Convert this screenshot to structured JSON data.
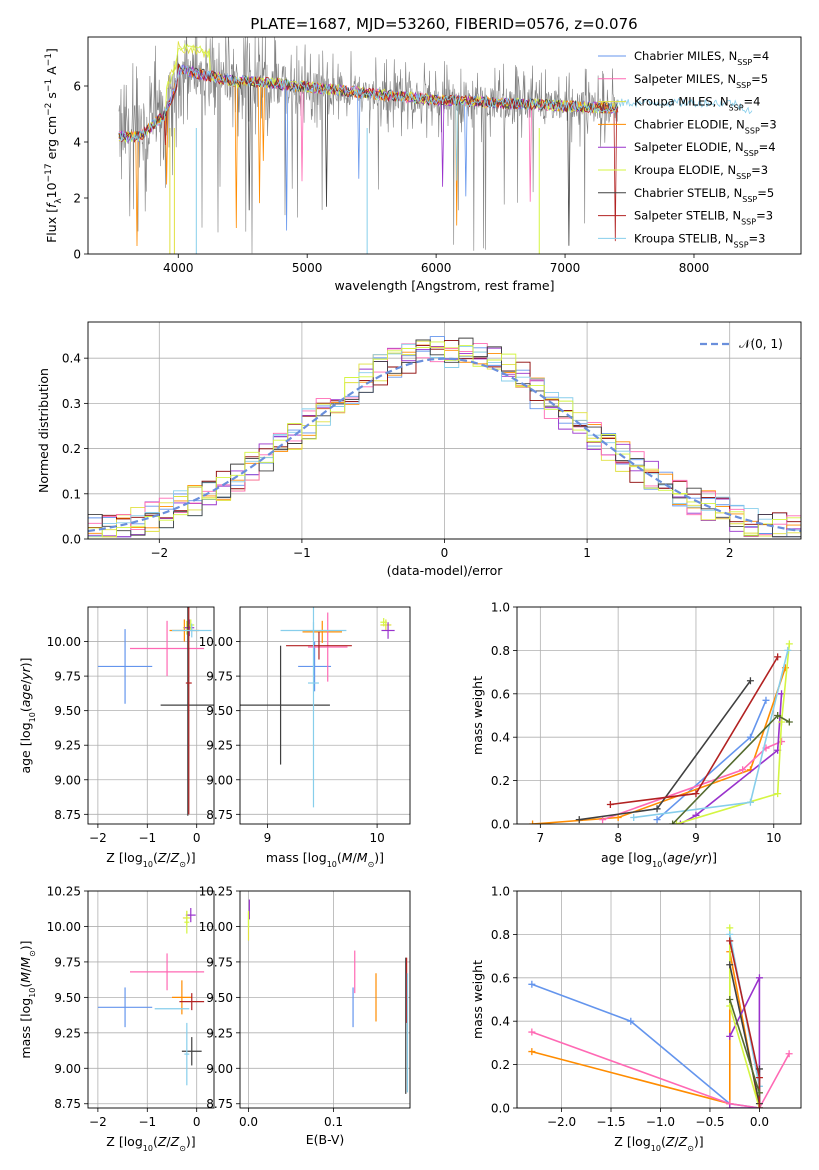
{
  "title": "PLATE=1687, MJD=53260, FIBERID=0576, z=0.076",
  "chart_data": [
    {
      "id": "spectrum",
      "type": "line",
      "title": "PLATE=1687, MJD=53260, FIBERID=0576, z=0.076",
      "xlabel": "wavelength [Angstrom, rest frame]",
      "ylabel_html": "Flux [<tspan font-style='italic'>f</tspan><tspan baseline-shift='sub' font-size='9'>λ</tspan>10<tspan baseline-shift='super' font-size='9'>−17</tspan> erg cm<tspan baseline-shift='super' font-size='9'>−2</tspan> s<tspan baseline-shift='super' font-size='9'>−1</tspan> A<tspan baseline-shift='super' font-size='9'>−1</tspan>]",
      "xlim": [
        3300,
        8830
      ],
      "ylim": [
        0,
        7.75
      ],
      "xticks": [
        4000,
        5000,
        6000,
        7000,
        8000
      ],
      "yticks": [
        0,
        2,
        4,
        6
      ],
      "grid": false,
      "legend_placement": "right",
      "data_series": {
        "name": "data",
        "color": "#808080",
        "x_range": [
          3540,
          7410
        ]
      },
      "model_series": [
        {
          "name_html": "Chabrier MILES, N<tspan baseline-shift='sub' font-size='8'>SSP</tspan>=4",
          "color": "#6495ed"
        },
        {
          "name_html": "Salpeter MILES, N<tspan baseline-shift='sub' font-size='8'>SSP</tspan>=5",
          "color": "#ff69b4"
        },
        {
          "name_html": "Kroupa MILES, N<tspan baseline-shift='sub' font-size='8'>SSP</tspan>=4",
          "color": "#e0e040"
        },
        {
          "name_html": "Chabrier ELODIE, N<tspan baseline-shift='sub' font-size='8'>SSP</tspan>=3",
          "color": "#ff8c00"
        },
        {
          "name_html": "Salpeter ELODIE, N<tspan baseline-shift='sub' font-size='8'>SSP</tspan>=4",
          "color": "#9932cc"
        },
        {
          "name_html": "Kroupa ELODIE, N<tspan baseline-shift='sub' font-size='8'>SSP</tspan>=3",
          "color": "#d4f542"
        },
        {
          "name_html": "Chabrier STELIB, N<tspan baseline-shift='sub' font-size='8'>SSP</tspan>=5",
          "color": "#404040"
        },
        {
          "name_html": "Salpeter STELIB, N<tspan baseline-shift='sub' font-size='8'>SSP</tspan>=3",
          "color": "#b22222"
        },
        {
          "name_html": "Kroupa STELIB, N<tspan baseline-shift='sub' font-size='8'>SSP</tspan>=3",
          "color": "#87ceeb"
        }
      ]
    },
    {
      "id": "residuals",
      "type": "histogram",
      "xlabel": "(data-model)/error",
      "ylabel": "Normed distribution",
      "xlim": [
        -2.5,
        2.5
      ],
      "ylim": [
        0,
        0.48
      ],
      "xticks": [
        -2,
        -1,
        0,
        1,
        2
      ],
      "yticks": [
        0.0,
        0.1,
        0.2,
        0.3,
        0.4
      ],
      "grid": true,
      "legend_placement": "top-right",
      "legend": [
        {
          "label": "𝒩(0, 1)",
          "color": "#6a8fdc",
          "style": "dashed"
        }
      ],
      "bin_width": 0.1,
      "series_colors": [
        "#6495ed",
        "#ff8c00",
        "#9932cc",
        "#e0e040",
        "#8b0000",
        "#ff69b4",
        "#87ceeb",
        "#404040",
        "#d4f542"
      ]
    },
    {
      "id": "age-vs-z",
      "type": "errorbar",
      "xlabel_html": "Z [log<tspan baseline-shift='sub' font-size='8'>10</tspan>(<tspan font-style='italic'>Z</tspan>/<tspan font-style='italic'>Z</tspan><tspan baseline-shift='sub' font-size='8'>⊙</tspan>)]",
      "ylabel_html": "age  [log<tspan baseline-shift='sub' font-size='8'>10</tspan>(<tspan font-style='italic'>age</tspan>/<tspan font-style='italic'>yr</tspan>)]",
      "xlim": [
        -2.2,
        0.35
      ],
      "ylim": [
        8.68,
        10.25
      ],
      "xticks": [
        -2,
        -1,
        0
      ],
      "yticks": [
        8.75,
        9.0,
        9.25,
        9.5,
        9.75,
        10.0
      ],
      "grid": true,
      "points": [
        {
          "x": -1.45,
          "y": 9.82,
          "xerr": 0.55,
          "yerr": 0.27,
          "color": "#6495ed"
        },
        {
          "x": -0.25,
          "y": 10.08,
          "xerr": 0.3,
          "yerr": 0.08,
          "color": "#ff8c00"
        },
        {
          "x": -0.6,
          "y": 9.95,
          "xerr": 0.75,
          "yerr": 0.2,
          "color": "#ff69b4"
        },
        {
          "x": -0.2,
          "y": 10.1,
          "xerr": 0.08,
          "yerr": 0.05,
          "color": "#e0e040"
        },
        {
          "x": -0.15,
          "y": 10.1,
          "xerr": 0.1,
          "yerr": 0.06,
          "color": "#9932cc"
        },
        {
          "x": -0.12,
          "y": 10.12,
          "xerr": 0.07,
          "yerr": 0.04,
          "color": "#d4f542"
        },
        {
          "x": -0.18,
          "y": 9.54,
          "xerr": 0.55,
          "yerr": 0.8,
          "color": "#404040"
        },
        {
          "x": -0.16,
          "y": 9.7,
          "xerr": 0.06,
          "yerr": 0.95,
          "color": "#b22222"
        },
        {
          "x": -0.1,
          "y": 10.08,
          "xerr": 0.4,
          "yerr": 0.05,
          "color": "#87ceeb"
        }
      ]
    },
    {
      "id": "age-vs-mass",
      "type": "errorbar",
      "xlabel_html": "mass [log<tspan baseline-shift='sub' font-size='8'>10</tspan>(<tspan font-style='italic'>M</tspan>/<tspan font-style='italic'>M</tspan><tspan baseline-shift='sub' font-size='8'>⊙</tspan>)]",
      "xlim": [
        8.75,
        10.3
      ],
      "ylim": [
        8.68,
        10.25
      ],
      "xticks": [
        9,
        10
      ],
      "yticks": [
        8.75,
        9.0,
        9.25,
        9.5,
        9.75,
        10.0
      ],
      "grid": true,
      "points": [
        {
          "x": 9.43,
          "y": 9.82,
          "xerr": 0.15,
          "yerr": 0.18,
          "color": "#6495ed"
        },
        {
          "x": 9.5,
          "y": 10.07,
          "xerr": 0.18,
          "yerr": 0.08,
          "color": "#ff8c00"
        },
        {
          "x": 9.55,
          "y": 9.96,
          "xerr": 0.18,
          "yerr": 0.25,
          "color": "#ff69b4"
        },
        {
          "x": 10.08,
          "y": 10.12,
          "xerr": 0.05,
          "yerr": 0.04,
          "color": "#e0e040"
        },
        {
          "x": 10.1,
          "y": 10.08,
          "xerr": 0.06,
          "yerr": 0.06,
          "color": "#9932cc"
        },
        {
          "x": 10.06,
          "y": 10.14,
          "xerr": 0.03,
          "yerr": 0.03,
          "color": "#d4f542"
        },
        {
          "x": 9.12,
          "y": 9.54,
          "xerr": 0.45,
          "yerr": 0.43,
          "color": "#404040"
        },
        {
          "x": 9.47,
          "y": 9.97,
          "xerr": 0.3,
          "yerr": 0.1,
          "color": "#b22222"
        },
        {
          "x": 9.42,
          "y": 9.7,
          "xerr": 0.05,
          "yerr": 0.9,
          "color": "#87ceeb"
        },
        {
          "x": 9.42,
          "y": 10.08,
          "xerr": 0.3,
          "yerr": 0.06,
          "color": "#87ceeb"
        }
      ]
    },
    {
      "id": "mass-weight-vs-age",
      "type": "line",
      "xlabel_html": "age  [log<tspan baseline-shift='sub' font-size='8'>10</tspan>(<tspan font-style='italic'>age</tspan>/<tspan font-style='italic'>yr</tspan>)]",
      "ylabel": "mass weight",
      "xlim": [
        6.7,
        10.35
      ],
      "ylim": [
        0,
        1.0
      ],
      "xticks": [
        7,
        8,
        9,
        10
      ],
      "yticks": [
        0.0,
        0.2,
        0.4,
        0.6,
        0.8,
        1.0
      ],
      "grid": true,
      "series": [
        {
          "color": "#6495ed",
          "x": [
            8.5,
            9.7,
            9.9
          ],
          "y": [
            0.02,
            0.4,
            0.57
          ]
        },
        {
          "color": "#ff8c00",
          "x": [
            6.9,
            8.0,
            9.7,
            10.15
          ],
          "y": [
            0.0,
            0.03,
            0.25,
            0.72
          ]
        },
        {
          "color": "#ff69b4",
          "x": [
            7.8,
            9.6,
            9.9,
            10.1
          ],
          "y": [
            0.02,
            0.25,
            0.35,
            0.38
          ]
        },
        {
          "color": "#9932cc",
          "x": [
            8.8,
            9.0,
            10.05,
            10.1
          ],
          "y": [
            0.0,
            0.04,
            0.34,
            0.6
          ]
        },
        {
          "color": "#d4f542",
          "x": [
            8.75,
            10.05,
            10.1,
            10.2
          ],
          "y": [
            0.0,
            0.14,
            0.47,
            0.83
          ]
        },
        {
          "color": "#87ceeb",
          "x": [
            8.2,
            9.7,
            10.18
          ],
          "y": [
            0.03,
            0.1,
            0.8
          ]
        },
        {
          "color": "#404040",
          "x": [
            7.5,
            8.5,
            9.7
          ],
          "y": [
            0.02,
            0.07,
            0.66
          ]
        },
        {
          "color": "#b22222",
          "x": [
            7.9,
            9.0,
            10.05
          ],
          "y": [
            0.09,
            0.14,
            0.77
          ]
        },
        {
          "color": "#556b2f",
          "x": [
            8.7,
            10.05,
            10.2
          ],
          "y": [
            0.0,
            0.5,
            0.47
          ]
        }
      ]
    },
    {
      "id": "mass-vs-z",
      "type": "errorbar",
      "xlabel_html": "Z [log<tspan baseline-shift='sub' font-size='8'>10</tspan>(<tspan font-style='italic'>Z</tspan>/<tspan font-style='italic'>Z</tspan><tspan baseline-shift='sub' font-size='8'>⊙</tspan>)]",
      "ylabel_html": "mass [log<tspan baseline-shift='sub' font-size='8'>10</tspan>(<tspan font-style='italic'>M</tspan>/<tspan font-style='italic'>M</tspan><tspan baseline-shift='sub' font-size='8'>⊙</tspan>)]",
      "xlim": [
        -2.2,
        0.35
      ],
      "ylim": [
        8.72,
        10.25
      ],
      "xticks": [
        -2,
        -1,
        0
      ],
      "yticks": [
        8.75,
        9.0,
        9.25,
        9.5,
        9.75,
        10.0,
        10.25
      ],
      "grid": true,
      "points": [
        {
          "x": -1.45,
          "y": 9.43,
          "xerr": 0.55,
          "yerr": 0.14,
          "color": "#6495ed"
        },
        {
          "x": -0.3,
          "y": 9.5,
          "xerr": 0.2,
          "yerr": 0.12,
          "color": "#ff8c00"
        },
        {
          "x": -0.6,
          "y": 9.68,
          "xerr": 0.75,
          "yerr": 0.13,
          "color": "#ff69b4"
        },
        {
          "x": -0.2,
          "y": 10.06,
          "xerr": 0.08,
          "yerr": 0.05,
          "color": "#e0e040"
        },
        {
          "x": -0.12,
          "y": 10.08,
          "xerr": 0.1,
          "yerr": 0.05,
          "color": "#9932cc"
        },
        {
          "x": -0.2,
          "y": 10.03,
          "xerr": 0.05,
          "yerr": 0.08,
          "color": "#d4f542"
        },
        {
          "x": -0.1,
          "y": 9.12,
          "xerr": 0.2,
          "yerr": 0.1,
          "color": "#404040"
        },
        {
          "x": -0.1,
          "y": 9.47,
          "xerr": 0.25,
          "yerr": 0.06,
          "color": "#b22222"
        },
        {
          "x": -0.2,
          "y": 9.1,
          "xerr": 0.05,
          "yerr": 0.22,
          "color": "#87ceeb"
        },
        {
          "x": -0.5,
          "y": 9.42,
          "xerr": 0.35,
          "yerr": 0.0,
          "color": "#87ceeb"
        }
      ]
    },
    {
      "id": "mass-vs-ebv",
      "type": "errorbar",
      "xlabel": "E(B-V)",
      "xlim": [
        -0.01,
        0.19
      ],
      "ylim": [
        8.72,
        10.25
      ],
      "xticks": [
        0.0,
        0.1
      ],
      "yticks": [
        8.75,
        9.0,
        9.25,
        9.5,
        9.75,
        10.0,
        10.25
      ],
      "grid": true,
      "points": [
        {
          "x": 0.123,
          "y": 9.43,
          "xerr": 0,
          "yerr": 0.14,
          "color": "#6495ed"
        },
        {
          "x": 0.15,
          "y": 9.5,
          "xerr": 0,
          "yerr": 0.17,
          "color": "#ff8c00"
        },
        {
          "x": 0.125,
          "y": 9.68,
          "xerr": 0,
          "yerr": 0.15,
          "color": "#ff69b4"
        },
        {
          "x": 0.0,
          "y": 10.0,
          "xerr": 0,
          "yerr": 0.1,
          "color": "#e0e040"
        },
        {
          "x": 0.001,
          "y": 10.12,
          "xerr": 0,
          "yerr": 0.07,
          "color": "#9932cc"
        },
        {
          "x": 0.0,
          "y": 10.05,
          "xerr": 0,
          "yerr": 0.06,
          "color": "#d4f542"
        },
        {
          "x": 0.185,
          "y": 9.3,
          "xerr": 0,
          "yerr": 0.48,
          "color": "#404040"
        },
        {
          "x": 0.186,
          "y": 9.55,
          "xerr": 0,
          "yerr": 0.23,
          "color": "#b22222"
        },
        {
          "x": 0.187,
          "y": 9.25,
          "xerr": 0,
          "yerr": 0.42,
          "color": "#87ceeb"
        }
      ]
    },
    {
      "id": "mass-weight-vs-z",
      "type": "line",
      "xlabel_html": "Z [log<tspan baseline-shift='sub' font-size='8'>10</tspan>(<tspan font-style='italic'>Z</tspan>/<tspan font-style='italic'>Z</tspan><tspan baseline-shift='sub' font-size='8'>⊙</tspan>)]",
      "ylabel": "mass weight",
      "xlim": [
        -2.45,
        0.42
      ],
      "ylim": [
        0,
        1.0
      ],
      "xticks": [
        -2.0,
        -1.5,
        -1.0,
        -0.5,
        0.0
      ],
      "yticks": [
        0.0,
        0.2,
        0.4,
        0.6,
        0.8,
        1.0
      ],
      "grid": true,
      "series": [
        {
          "color": "#6495ed",
          "x": [
            -2.3,
            -1.3,
            -0.3,
            0.0
          ],
          "y": [
            0.57,
            0.4,
            0.02,
            0.0
          ]
        },
        {
          "color": "#ff8c00",
          "x": [
            -2.3,
            -0.3,
            -0.3,
            0.0
          ],
          "y": [
            0.26,
            0.02,
            0.72,
            0.0
          ]
        },
        {
          "color": "#ff69b4",
          "x": [
            -2.3,
            -0.3,
            0.0,
            0.3
          ],
          "y": [
            0.35,
            0.02,
            0.0,
            0.25
          ]
        },
        {
          "color": "#9932cc",
          "x": [
            -0.3,
            0.0,
            0.0,
            -0.3
          ],
          "y": [
            0.0,
            0.0,
            0.6,
            0.33
          ]
        },
        {
          "color": "#d4f542",
          "x": [
            -0.3,
            -0.3,
            0.0
          ],
          "y": [
            0.83,
            0.47,
            0.0
          ]
        },
        {
          "color": "#87ceeb",
          "x": [
            -0.3,
            0.0,
            0.0
          ],
          "y": [
            0.8,
            0.1,
            0.0
          ]
        },
        {
          "color": "#404040",
          "x": [
            -0.3,
            0.0,
            0.0
          ],
          "y": [
            0.66,
            0.02,
            0.18
          ]
        },
        {
          "color": "#b22222",
          "x": [
            -0.3,
            0.0,
            0.0
          ],
          "y": [
            0.77,
            0.14,
            0.0
          ]
        },
        {
          "color": "#556b2f",
          "x": [
            -0.3,
            0.0
          ],
          "y": [
            0.5,
            0.07
          ]
        }
      ]
    }
  ]
}
